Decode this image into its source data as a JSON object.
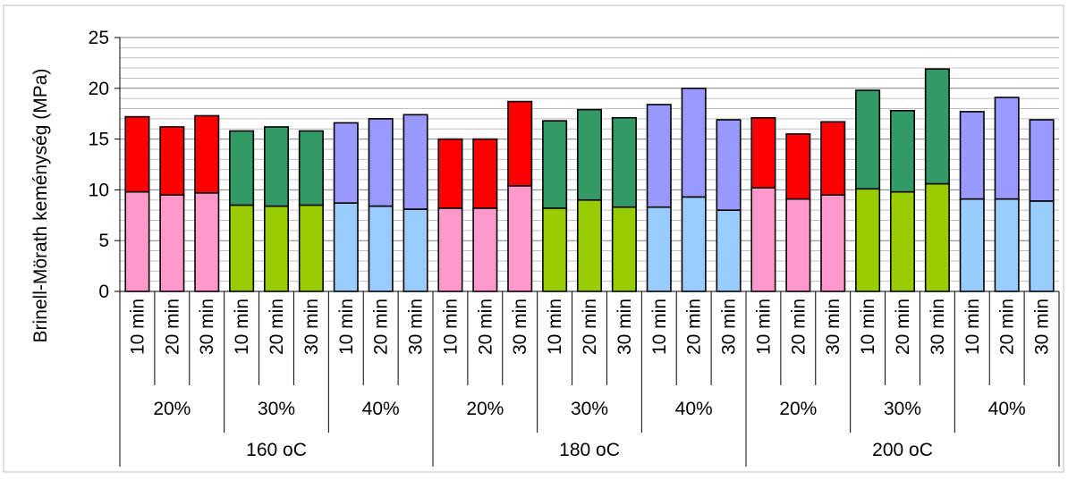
{
  "chart_data": {
    "type": "bar",
    "stacked": true,
    "title": "",
    "xlabel": "",
    "ylabel": "Brinell-Mörath keménység (MPa)",
    "ylim": [
      0,
      25
    ],
    "yticks": [
      0,
      5,
      10,
      15,
      20,
      25
    ],
    "grid": true,
    "legend": "none",
    "colors": {
      "20%": {
        "lower": "#ff99cc",
        "upper": "#ff0000"
      },
      "30%": {
        "lower": "#99cc00",
        "upper": "#339966"
      },
      "40%": {
        "lower": "#99ccff",
        "upper": "#9999ff"
      }
    },
    "groups": [
      {
        "temperature": "160 oC",
        "subgroups": [
          {
            "concentration": "20%",
            "bars": [
              {
                "time": "10 min",
                "lower": 9.8,
                "total": 17.2
              },
              {
                "time": "20 min",
                "lower": 9.5,
                "total": 16.2
              },
              {
                "time": "30 min",
                "lower": 9.7,
                "total": 17.3
              }
            ]
          },
          {
            "concentration": "30%",
            "bars": [
              {
                "time": "10 min",
                "lower": 8.5,
                "total": 15.8
              },
              {
                "time": "20 min",
                "lower": 8.4,
                "total": 16.2
              },
              {
                "time": "30 min",
                "lower": 8.5,
                "total": 15.8
              }
            ]
          },
          {
            "concentration": "40%",
            "bars": [
              {
                "time": "10 min",
                "lower": 8.7,
                "total": 16.6
              },
              {
                "time": "20 min",
                "lower": 8.4,
                "total": 17.0
              },
              {
                "time": "30 min",
                "lower": 8.1,
                "total": 17.4
              }
            ]
          }
        ]
      },
      {
        "temperature": "180 oC",
        "subgroups": [
          {
            "concentration": "20%",
            "bars": [
              {
                "time": "10 min",
                "lower": 8.2,
                "total": 15.0
              },
              {
                "time": "20 min",
                "lower": 8.2,
                "total": 15.0
              },
              {
                "time": "30 min",
                "lower": 10.4,
                "total": 18.7
              }
            ]
          },
          {
            "concentration": "30%",
            "bars": [
              {
                "time": "10 min",
                "lower": 8.2,
                "total": 16.8
              },
              {
                "time": "20 min",
                "lower": 9.0,
                "total": 17.9
              },
              {
                "time": "30 min",
                "lower": 8.3,
                "total": 17.1
              }
            ]
          },
          {
            "concentration": "40%",
            "bars": [
              {
                "time": "10 min",
                "lower": 8.3,
                "total": 18.4
              },
              {
                "time": "20 min",
                "lower": 9.3,
                "total": 20.0
              },
              {
                "time": "30 min",
                "lower": 8.0,
                "total": 16.9
              }
            ]
          }
        ]
      },
      {
        "temperature": "200 oC",
        "subgroups": [
          {
            "concentration": "20%",
            "bars": [
              {
                "time": "10 min",
                "lower": 10.2,
                "total": 17.1
              },
              {
                "time": "20 min",
                "lower": 9.1,
                "total": 15.5
              },
              {
                "time": "30 min",
                "lower": 9.5,
                "total": 16.7
              }
            ]
          },
          {
            "concentration": "30%",
            "bars": [
              {
                "time": "10 min",
                "lower": 10.1,
                "total": 19.8
              },
              {
                "time": "20 min",
                "lower": 9.8,
                "total": 17.8
              },
              {
                "time": "30 min",
                "lower": 10.6,
                "total": 21.9
              }
            ]
          },
          {
            "concentration": "40%",
            "bars": [
              {
                "time": "10 min",
                "lower": 9.1,
                "total": 17.7
              },
              {
                "time": "20 min",
                "lower": 9.1,
                "total": 19.1
              },
              {
                "time": "30 min",
                "lower": 8.9,
                "total": 16.9
              }
            ]
          }
        ]
      }
    ]
  }
}
